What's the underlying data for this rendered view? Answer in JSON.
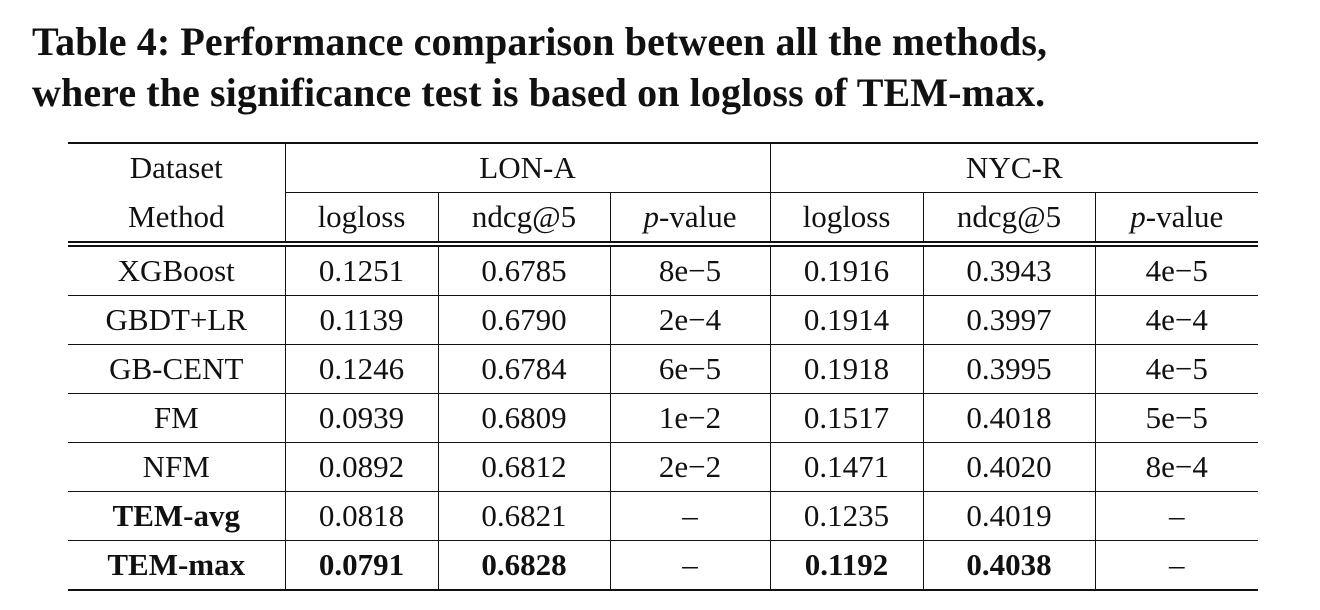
{
  "caption": {
    "line1": "Table 4: Performance comparison between all the methods,",
    "line2": "where the significance test is based on logloss of TEM-max."
  },
  "header": {
    "dataset_label": "Dataset",
    "method_label": "Method",
    "groups": [
      "LON-A",
      "NYC-R"
    ],
    "metric_logloss": "logloss",
    "metric_ndcg": "ndcg@5",
    "metric_p_italic": "p",
    "metric_p_rest": "-value"
  },
  "rows": [
    {
      "method": "XGBoost",
      "bold": false,
      "lon": [
        "0.1251",
        "0.6785",
        "8e−5"
      ],
      "nyc": [
        "0.1916",
        "0.3943",
        "4e−5"
      ]
    },
    {
      "method": "GBDT+LR",
      "bold": false,
      "lon": [
        "0.1139",
        "0.6790",
        "2e−4"
      ],
      "nyc": [
        "0.1914",
        "0.3997",
        "4e−4"
      ]
    },
    {
      "method": "GB-CENT",
      "bold": false,
      "lon": [
        "0.1246",
        "0.6784",
        "6e−5"
      ],
      "nyc": [
        "0.1918",
        "0.3995",
        "4e−5"
      ]
    },
    {
      "method": "FM",
      "bold": false,
      "lon": [
        "0.0939",
        "0.6809",
        "1e−2"
      ],
      "nyc": [
        "0.1517",
        "0.4018",
        "5e−5"
      ]
    },
    {
      "method": "NFM",
      "bold": false,
      "lon": [
        "0.0892",
        "0.6812",
        "2e−2"
      ],
      "nyc": [
        "0.1471",
        "0.4020",
        "8e−4"
      ]
    },
    {
      "method": "TEM-avg",
      "bold": true,
      "lon": [
        "0.0818",
        "0.6821",
        "–"
      ],
      "nyc": [
        "0.1235",
        "0.4019",
        "–"
      ]
    },
    {
      "method": "TEM-max",
      "bold": true,
      "lon": [
        "0.0791",
        "0.6828",
        "–"
      ],
      "nyc": [
        "0.1192",
        "0.4038",
        "–"
      ]
    }
  ]
}
